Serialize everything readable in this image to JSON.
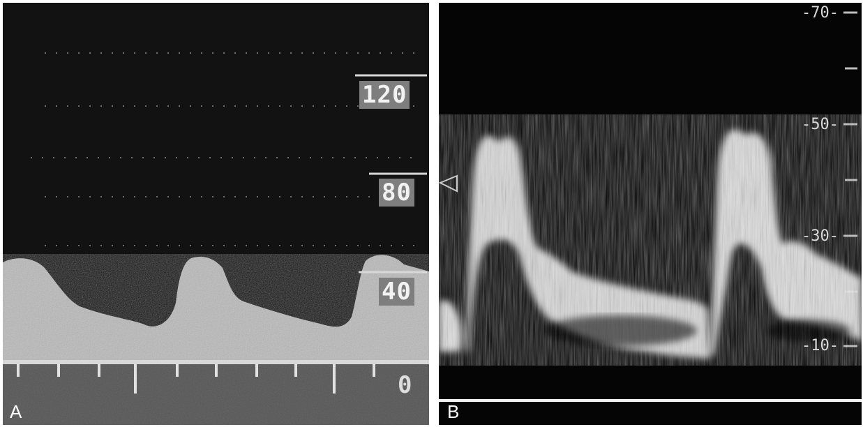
{
  "panel_a": {
    "letter": "A",
    "scale_labels": [
      "120",
      "80",
      "40",
      "0"
    ]
  },
  "panel_b": {
    "letter": "B",
    "scale_labels": [
      "-70-",
      "-50-",
      "-30-",
      "-10-"
    ]
  },
  "colors": {
    "background": "#0b0b0b",
    "waveform_a": "#bdbdbd",
    "waveform_b": "#eeeeee",
    "label_box": "#7e7e7e",
    "frame": "#ffffff"
  }
}
